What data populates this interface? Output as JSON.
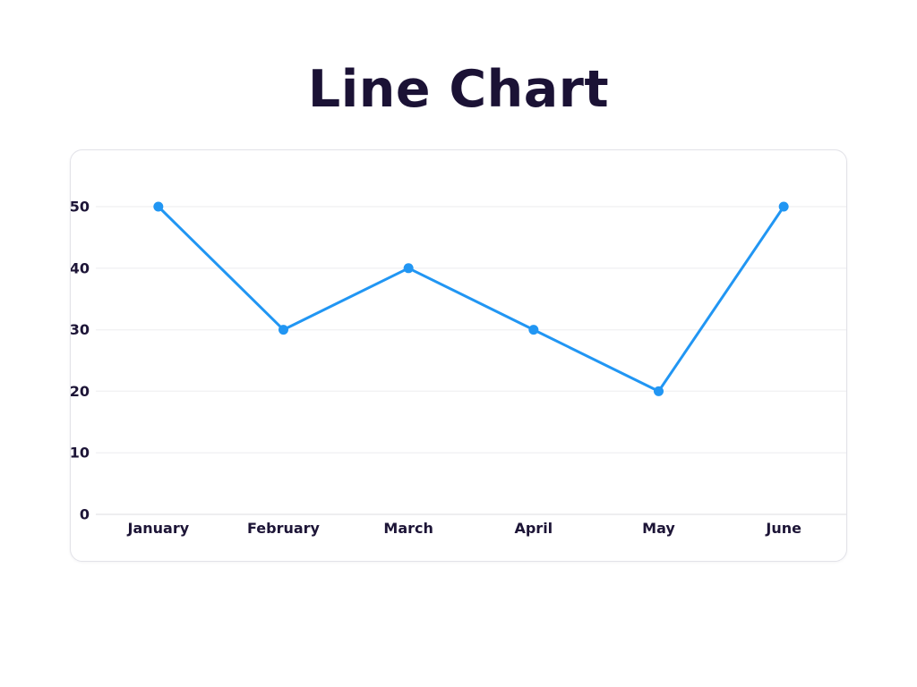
{
  "page": {
    "title": "Line Chart"
  },
  "colors": {
    "page_background": "#ffffff",
    "card_background": "#ffffff",
    "card_border": "#e2e2e8",
    "title_text": "#1b1235",
    "axis_label_text": "#1d1537",
    "gridline": "#f2f2f4",
    "baseline": "#e8e8ec",
    "line": "#2196f3",
    "point_fill": "#2196f3"
  },
  "chart_data": {
    "type": "line",
    "title": "Line Chart",
    "categories": [
      "January",
      "February",
      "March",
      "April",
      "May",
      "June"
    ],
    "series": [
      {
        "name": "values",
        "values": [
          50,
          30,
          40,
          30,
          20,
          50
        ]
      }
    ],
    "xlabel": "",
    "ylabel": "",
    "ylim": [
      0,
      55
    ],
    "yticks": [
      0,
      10,
      20,
      30,
      40,
      50
    ],
    "grid": true,
    "legend": false
  }
}
